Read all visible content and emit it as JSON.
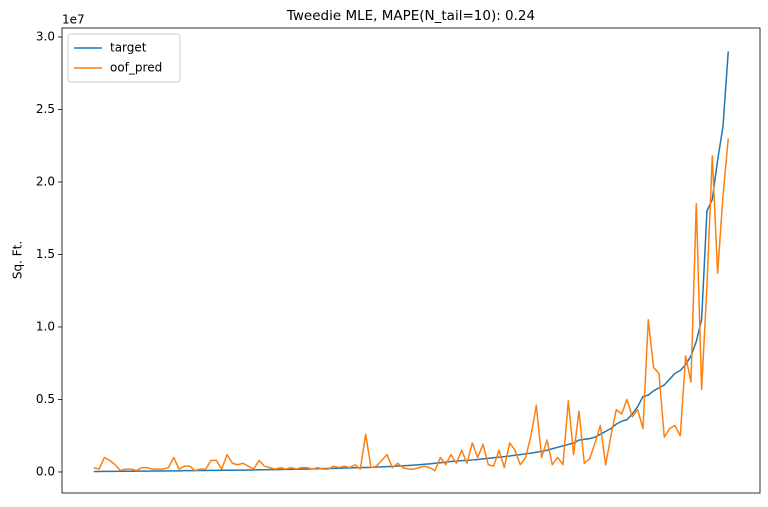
{
  "chart_data": {
    "type": "line",
    "title": "Tweedie MLE, MAPE(N_tail=10): 0.24",
    "ylabel": "Sq. Ft.",
    "y_offset_label": "1e7",
    "ylim": [
      -0.145,
      3.062
    ],
    "yticks": [
      {
        "value": 0,
        "label": "0.0"
      },
      0.5,
      {
        "value": 1,
        "label": "1.0"
      },
      1.5,
      {
        "value": 2,
        "label": "2.0"
      },
      2.5,
      {
        "value": 3,
        "label": "3.0"
      }
    ],
    "legend": "upper left",
    "grid": false,
    "series": [
      {
        "name": "target",
        "color": "#1f77b4",
        "values": [
          0.003,
          0.003,
          0.004,
          0.004,
          0.004,
          0.005,
          0.005,
          0.005,
          0.006,
          0.006,
          0.006,
          0.007,
          0.007,
          0.007,
          0.008,
          0.008,
          0.008,
          0.009,
          0.009,
          0.009,
          0.01,
          0.01,
          0.011,
          0.011,
          0.012,
          0.012,
          0.012,
          0.013,
          0.013,
          0.014,
          0.014,
          0.015,
          0.015,
          0.016,
          0.016,
          0.017,
          0.018,
          0.018,
          0.019,
          0.02,
          0.02,
          0.021,
          0.022,
          0.023,
          0.024,
          0.025,
          0.026,
          0.027,
          0.028,
          0.029,
          0.03,
          0.031,
          0.032,
          0.034,
          0.035,
          0.037,
          0.039,
          0.041,
          0.043,
          0.045,
          0.047,
          0.05,
          0.053,
          0.056,
          0.06,
          0.064,
          0.068,
          0.072,
          0.075,
          0.078,
          0.08,
          0.083,
          0.086,
          0.09,
          0.094,
          0.098,
          0.102,
          0.106,
          0.11,
          0.115,
          0.12,
          0.125,
          0.13,
          0.136,
          0.142,
          0.15,
          0.16,
          0.17,
          0.18,
          0.19,
          0.2,
          0.22,
          0.225,
          0.23,
          0.24,
          0.26,
          0.28,
          0.3,
          0.33,
          0.35,
          0.36,
          0.4,
          0.45,
          0.52,
          0.53,
          0.56,
          0.58,
          0.6,
          0.64,
          0.68,
          0.7,
          0.74,
          0.8,
          0.9,
          1.05,
          1.8,
          1.88,
          2.15,
          2.38,
          2.9
        ]
      },
      {
        "name": "oof_pred",
        "color": "#ff7f0e",
        "values": [
          0.03,
          0.02,
          0.1,
          0.08,
          0.05,
          0.01,
          0.02,
          0.02,
          0.01,
          0.03,
          0.03,
          0.02,
          0.02,
          0.02,
          0.03,
          0.1,
          0.02,
          0.04,
          0.04,
          0.01,
          0.02,
          0.02,
          0.08,
          0.08,
          0.02,
          0.12,
          0.06,
          0.05,
          0.06,
          0.04,
          0.02,
          0.08,
          0.04,
          0.03,
          0.02,
          0.03,
          0.02,
          0.03,
          0.02,
          0.03,
          0.03,
          0.02,
          0.03,
          0.02,
          0.02,
          0.04,
          0.03,
          0.04,
          0.03,
          0.05,
          0.02,
          0.26,
          0.03,
          0.04,
          0.08,
          0.12,
          0.03,
          0.06,
          0.03,
          0.02,
          0.02,
          0.03,
          0.04,
          0.03,
          0.01,
          0.1,
          0.05,
          0.12,
          0.06,
          0.15,
          0.06,
          0.2,
          0.1,
          0.19,
          0.05,
          0.04,
          0.15,
          0.03,
          0.2,
          0.15,
          0.05,
          0.1,
          0.25,
          0.46,
          0.1,
          0.22,
          0.05,
          0.1,
          0.05,
          0.49,
          0.12,
          0.42,
          0.06,
          0.09,
          0.2,
          0.32,
          0.05,
          0.25,
          0.43,
          0.4,
          0.5,
          0.38,
          0.43,
          0.3,
          1.05,
          0.72,
          0.68,
          0.24,
          0.3,
          0.32,
          0.25,
          0.8,
          0.62,
          1.85,
          0.57,
          1.28,
          2.18,
          1.37,
          1.9,
          2.3
        ]
      }
    ]
  }
}
